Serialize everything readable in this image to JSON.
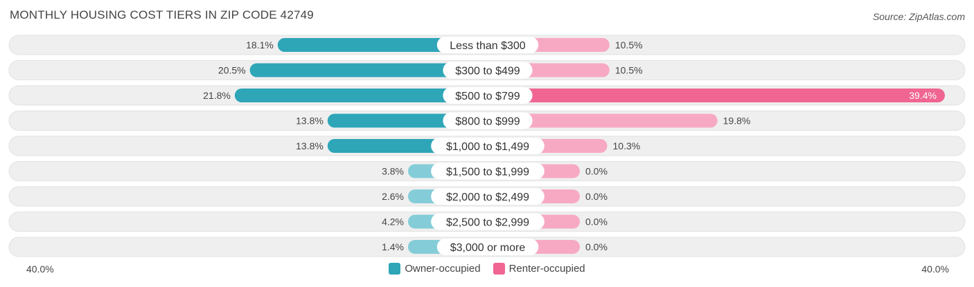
{
  "title": "MONTHLY HOUSING COST TIERS IN ZIP CODE 42749",
  "source": "Source: ZipAtlas.com",
  "colors": {
    "owner": "#2ea6b8",
    "owner_light": "#84cdd8",
    "renter": "#f06592",
    "renter_light": "#f7a9c3",
    "row_bg": "#efefef"
  },
  "chart_data": {
    "type": "bar",
    "orientation": "horizontal-diverging",
    "categories": [
      "Less than $300",
      "$300 to $499",
      "$500 to $799",
      "$800 to $999",
      "$1,000 to $1,499",
      "$1,500 to $1,999",
      "$2,000 to $2,499",
      "$2,500 to $2,999",
      "$3,000 or more"
    ],
    "series": [
      {
        "name": "Owner-occupied",
        "values": [
          18.1,
          20.5,
          21.8,
          13.8,
          13.8,
          3.8,
          2.6,
          4.2,
          1.4
        ],
        "labels": [
          "18.1%",
          "20.5%",
          "21.8%",
          "13.8%",
          "13.8%",
          "3.8%",
          "2.6%",
          "4.2%",
          "1.4%"
        ]
      },
      {
        "name": "Renter-occupied",
        "values": [
          10.5,
          10.5,
          39.4,
          19.8,
          10.3,
          0.0,
          0.0,
          0.0,
          0.0
        ],
        "labels": [
          "10.5%",
          "10.5%",
          "39.4%",
          "19.8%",
          "10.3%",
          "0.0%",
          "0.0%",
          "0.0%",
          "0.0%"
        ]
      }
    ],
    "axis_min_label": "40.0%",
    "axis_max_label": "40.0%",
    "xlim": [
      -40,
      40
    ],
    "legend_position": "bottom-center"
  }
}
